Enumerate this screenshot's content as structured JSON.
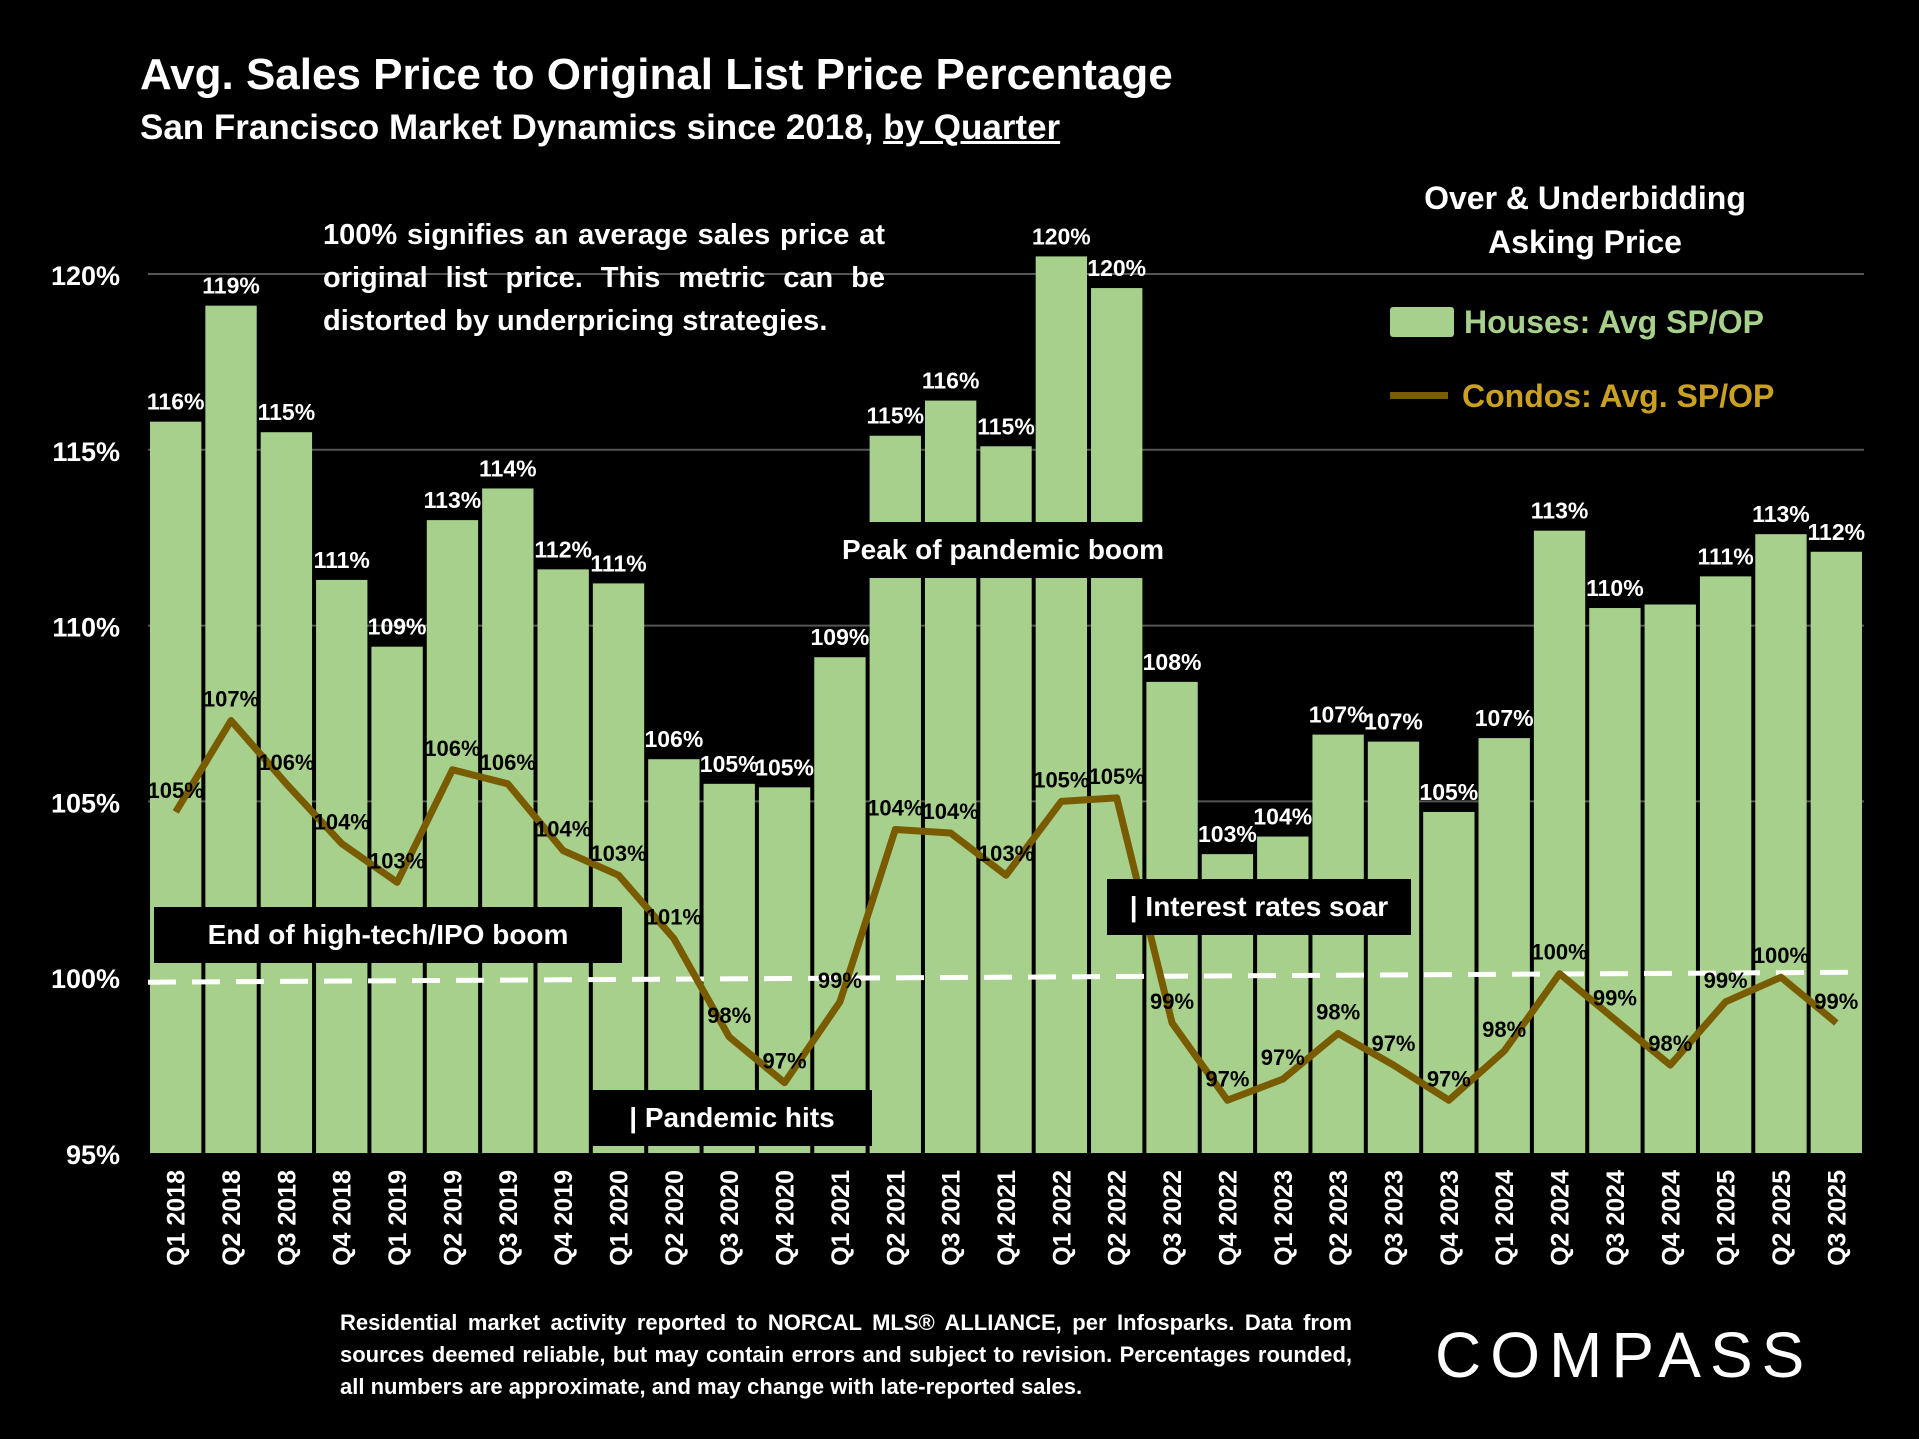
{
  "header": {
    "title": "Avg. Sales Price to Original List Price Percentage",
    "subtitle_prefix": "San Francisco Market Dynamics since 2018, ",
    "subtitle_underlined": "by Quarter"
  },
  "note": "100% signifies an average sales price at original list price. This metric can be distorted by underpricing strategies.",
  "legend": {
    "title": "Over & Underbidding Asking Price",
    "houses": "Houses: Avg SP/OP",
    "condos": "Condos: Avg. SP/OP"
  },
  "callouts": {
    "ipo": "End of high-tech/IPO boom",
    "pandemic": "| Pandemic hits",
    "rates": "| Interest rates soar",
    "peak": "Peak of pandemic boom"
  },
  "footnote": "Residential market activity reported to NORCAL MLS® ALLIANCE, per Infosparks. Data from sources deemed reliable, but may contain errors and subject to revision. Percentages rounded, all numbers are approximate, and may change with late-reported sales.",
  "logo": "COMPASS",
  "colors": {
    "houses": "#a8d08d",
    "condos": "#7a5c00",
    "background": "#000000",
    "reference_line": "#ffffff"
  },
  "chart_data": {
    "type": "bar",
    "categories": [
      "Q1 2018",
      "Q2 2018",
      "Q3 2018",
      "Q4 2018",
      "Q1 2019",
      "Q2 2019",
      "Q3 2019",
      "Q4 2019",
      "Q1 2020",
      "Q2 2020",
      "Q3 2020",
      "Q4 2020",
      "Q1 2021",
      "Q2 2021",
      "Q3 2021",
      "Q4 2021",
      "Q1 2022",
      "Q2 2022",
      "Q3 2022",
      "Q4 2022",
      "Q1 2023",
      "Q2 2023",
      "Q3 2023",
      "Q4 2023",
      "Q1 2024",
      "Q2 2024",
      "Q3 2024",
      "Q4 2024",
      "Q1 2025",
      "Q2 2025",
      "Q3 2025"
    ],
    "series": [
      {
        "name": "Houses: Avg SP/OP",
        "type": "bar",
        "values": [
          115.8,
          119.1,
          115.5,
          111.3,
          109.4,
          113.0,
          113.9,
          111.6,
          111.2,
          106.2,
          105.5,
          105.4,
          109.1,
          115.4,
          116.4,
          115.1,
          120.5,
          119.6,
          108.4,
          103.5,
          104.0,
          106.9,
          106.7,
          104.7,
          106.8,
          112.7,
          110.5,
          110.6,
          111.4,
          112.6,
          112.1
        ],
        "labels": [
          "116%",
          "119%",
          "115%",
          "111%",
          "109%",
          "113%",
          "114%",
          "112%",
          "111%",
          "106%",
          "105%",
          "105%",
          "109%",
          "115%",
          "116%",
          "115%",
          "120%",
          "120%",
          "108%",
          "103%",
          "104%",
          "107%",
          "107%",
          "105%",
          "107%",
          "113%",
          "110%",
          "",
          "111%",
          "113%",
          "112%"
        ]
      },
      {
        "name": "Condos: Avg. SP/OP",
        "type": "line",
        "values": [
          104.7,
          107.3,
          105.5,
          103.8,
          102.7,
          105.9,
          105.5,
          103.6,
          102.9,
          101.1,
          98.3,
          97.0,
          99.3,
          104.2,
          104.1,
          102.9,
          105.0,
          105.1,
          98.7,
          96.5,
          97.1,
          98.4,
          97.5,
          96.5,
          97.9,
          100.1,
          98.8,
          97.5,
          99.3,
          100.0,
          98.7
        ],
        "labels": [
          "105%",
          "107%",
          "106%",
          "104%",
          "103%",
          "106%",
          "106%",
          "104%",
          "103%",
          "101%",
          "98%",
          "97%",
          "99%",
          "104%",
          "104%",
          "103%",
          "105%",
          "105%",
          "99%",
          "97%",
          "97%",
          "98%",
          "97%",
          "97%",
          "98%",
          "100%",
          "99%",
          "98%",
          "99%",
          "100%",
          "99%"
        ]
      }
    ],
    "reference_line": 100,
    "y_ticks": [
      "95%",
      "100%",
      "105%",
      "110%",
      "115%",
      "120%"
    ],
    "ylim": [
      95,
      122
    ],
    "grid": true
  }
}
